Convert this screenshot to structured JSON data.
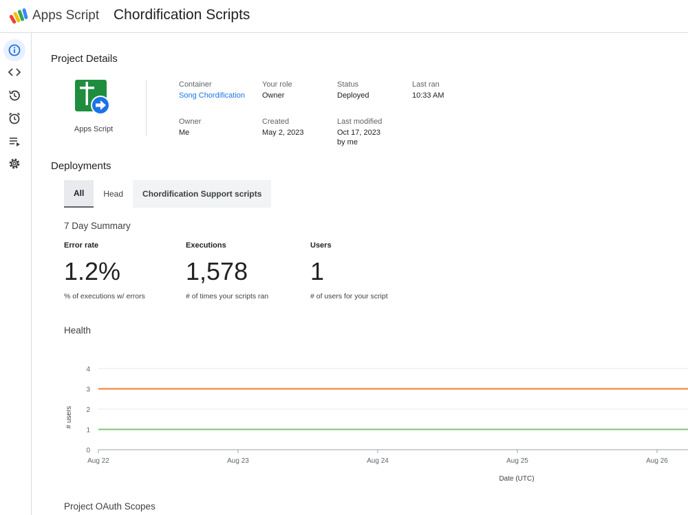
{
  "header": {
    "app_name": "Apps Script",
    "project_title": "Chordification Scripts"
  },
  "rail": {
    "items": [
      {
        "icon": "info-icon",
        "active": true
      },
      {
        "icon": "code-icon",
        "active": false
      },
      {
        "icon": "history-icon",
        "active": false
      },
      {
        "icon": "alarm-icon",
        "active": false
      },
      {
        "icon": "executions-icon",
        "active": false
      },
      {
        "icon": "gear-icon",
        "active": false
      }
    ]
  },
  "project_details": {
    "title": "Project Details",
    "icon_label": "Apps Script",
    "container_label": "Container",
    "container_value": "Song Chordification",
    "role_label": "Your role",
    "role_value": "Owner",
    "status_label": "Status",
    "status_value": "Deployed",
    "lastran_label": "Last ran",
    "lastran_value": "10:33 AM",
    "owner_label": "Owner",
    "owner_value": "Me",
    "created_label": "Created",
    "created_value": "May 2, 2023",
    "modified_label": "Last modified",
    "modified_value": "Oct 17, 2023",
    "modified_by": "by me"
  },
  "deployments": {
    "title": "Deployments",
    "tabs": [
      "All",
      "Head",
      "Chordification Support scripts"
    ],
    "selected_tab": 0
  },
  "summary": {
    "title": "7 Day Summary",
    "error_rate": {
      "label": "Error rate",
      "value": "1.2%",
      "desc": "% of executions w/ errors"
    },
    "executions": {
      "label": "Executions",
      "value": "1,578",
      "desc": "# of times your scripts ran"
    },
    "users": {
      "label": "Users",
      "value": "1",
      "desc": "# of users for your script"
    }
  },
  "health": {
    "title": "Health"
  },
  "oauth": {
    "title": "Project OAuth Scopes"
  },
  "chart_data": {
    "type": "line",
    "title": "Health",
    "xlabel": "Date (UTC)",
    "ylabel": "# users",
    "categories": [
      "Aug 22",
      "Aug 23",
      "Aug 24",
      "Aug 25",
      "Aug 26"
    ],
    "ylim": [
      0,
      4
    ],
    "yticks": [
      0,
      1,
      2,
      3,
      4
    ],
    "series": [
      {
        "values": [
          3,
          3,
          3,
          3,
          3
        ],
        "color": "#f57c2b"
      },
      {
        "values": [
          1,
          1,
          1,
          1,
          1
        ],
        "color": "#7cc470"
      }
    ],
    "grid": true
  }
}
